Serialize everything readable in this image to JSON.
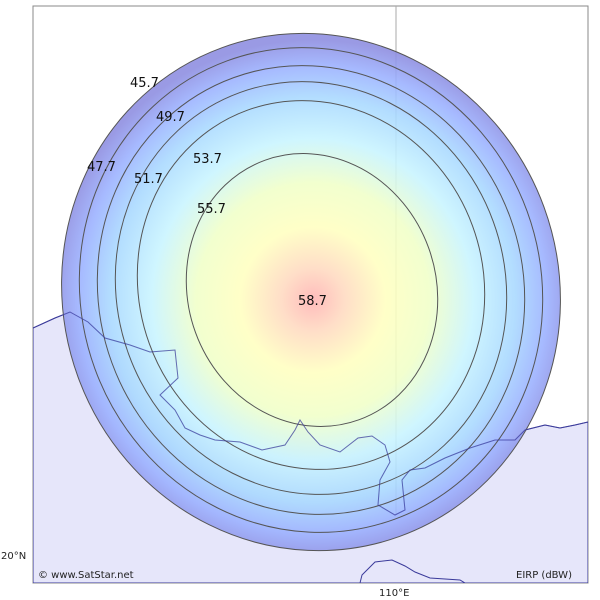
{
  "map": {
    "latitude_label": "20°N",
    "longitude_label": "110°E",
    "copyright": "© www.SatStar.net",
    "legend_unit": "EIRP (dBW)",
    "peak_value": "58.7",
    "contours": [
      {
        "label": "45.7"
      },
      {
        "label": "47.7"
      },
      {
        "label": "49.7"
      },
      {
        "label": "51.7"
      },
      {
        "label": "53.7"
      },
      {
        "label": "55.7"
      }
    ],
    "colors": {
      "land": "#e6e6fa",
      "coast": "#3a3a9a",
      "beam_outer": "#8888dd",
      "beam_center": "#ffb3b3",
      "contour_line": "#555555",
      "grid": "#aaaaaa"
    }
  }
}
